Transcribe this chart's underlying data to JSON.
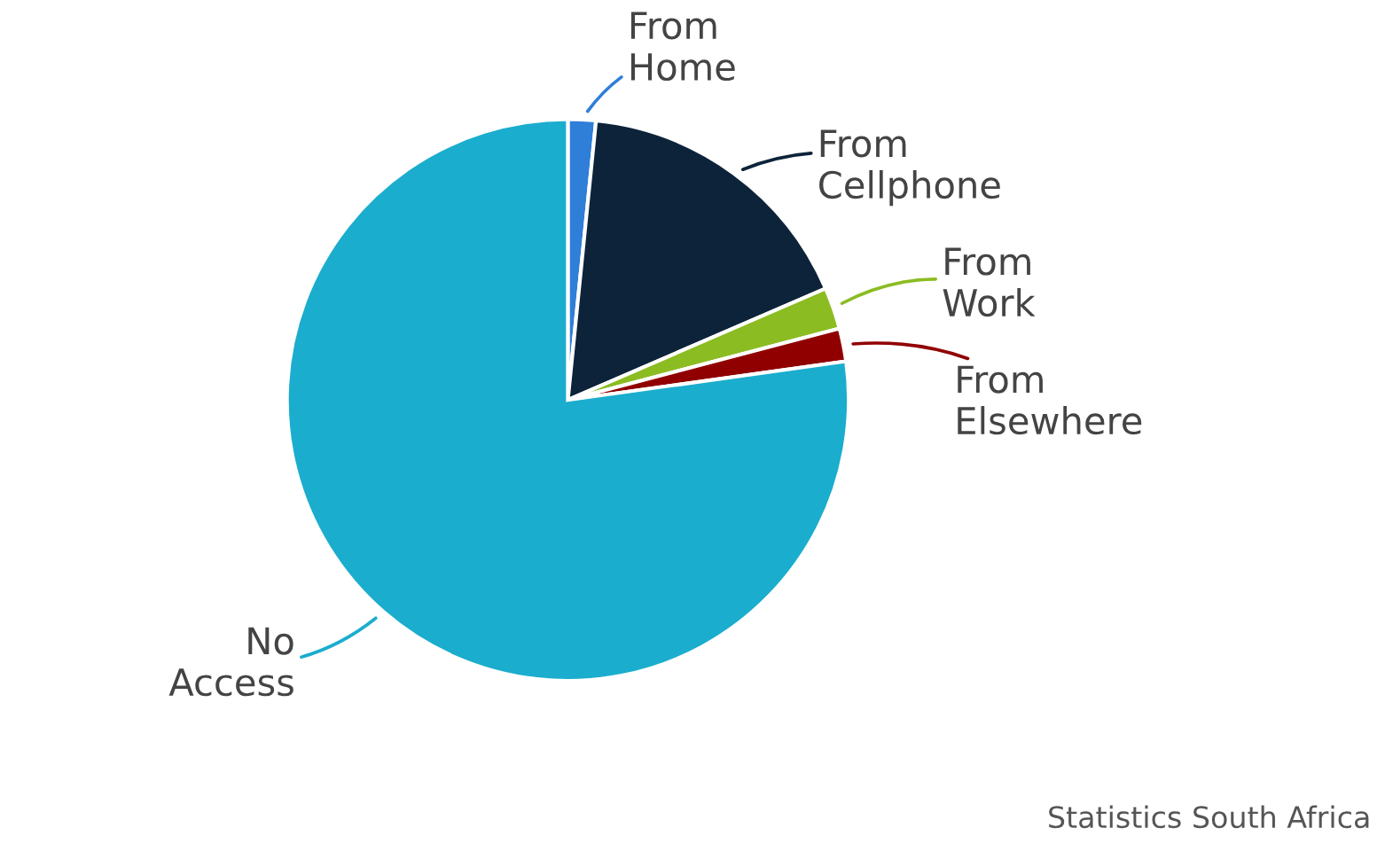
{
  "chart_data": {
    "type": "pie",
    "categories": [
      "From Home",
      "From Cellphone",
      "From Work",
      "From Elsewhere",
      "No Access"
    ],
    "values": [
      1.6,
      16.9,
      2.4,
      1.9,
      77.2
    ],
    "colors": [
      "#2f7ed8",
      "#0d233a",
      "#8bbc21",
      "#910000",
      "#1aadce"
    ],
    "annotations": [
      "Statistics South Africa"
    ]
  }
}
